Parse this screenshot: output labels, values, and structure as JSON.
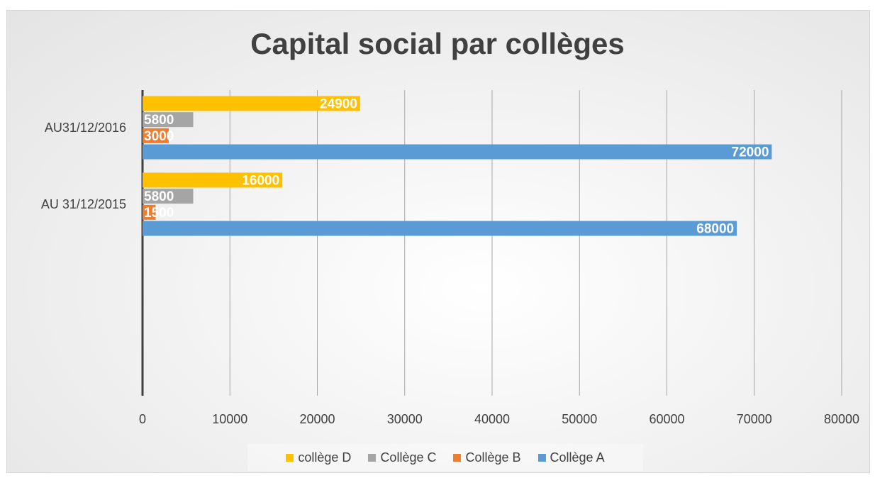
{
  "chart_data": {
    "type": "bar",
    "orientation": "horizontal",
    "title": "Capital social par collèges",
    "categories": [
      "AU 31/12/2015",
      "AU31/12/2016"
    ],
    "series": [
      {
        "name": "Collège A",
        "values": [
          68000,
          72000
        ],
        "color": "#5B9BD5"
      },
      {
        "name": "Collège B",
        "values": [
          1500,
          3000
        ],
        "color": "#ED7D31"
      },
      {
        "name": "Collège C",
        "values": [
          5800,
          5800
        ],
        "color": "#A5A5A5"
      },
      {
        "name": "collège D",
        "values": [
          16000,
          24900
        ],
        "color": "#FFC000"
      }
    ],
    "xlim": [
      0,
      80000
    ],
    "xticks": [
      "0",
      "10000",
      "20000",
      "30000",
      "40000",
      "50000",
      "60000",
      "70000",
      "80000"
    ],
    "grid": true,
    "legend_position": "bottom",
    "legend_order": [
      "collège D",
      "Collège C",
      "Collège B",
      "Collège A"
    ]
  }
}
